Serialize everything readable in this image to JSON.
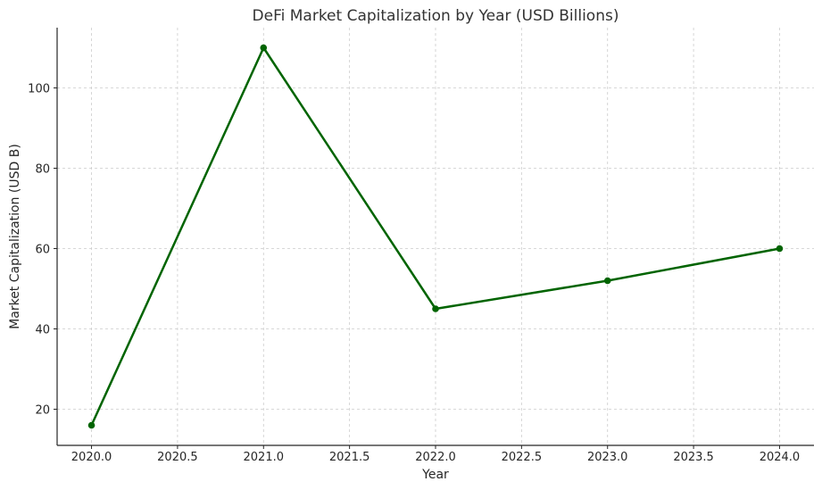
{
  "chart_data": {
    "type": "line",
    "title": "DeFi Market Capitalization by Year (USD Billions)",
    "xlabel": "Year",
    "ylabel": "Market Capitalization (USD B)",
    "xlim": [
      2019.8,
      2024.2
    ],
    "ylim": [
      11,
      115
    ],
    "xticks": [
      "2020.0",
      "2020.5",
      "2021.0",
      "2021.5",
      "2022.0",
      "2022.5",
      "2023.0",
      "2023.5",
      "2024.0"
    ],
    "yticks": [
      "20",
      "40",
      "60",
      "80",
      "100"
    ],
    "grid": true,
    "series": [
      {
        "color": "#006400",
        "marker": "circle",
        "x": [
          2020,
          2021,
          2022,
          2023,
          2024
        ],
        "y": [
          16,
          110,
          45,
          52,
          60
        ]
      }
    ]
  }
}
